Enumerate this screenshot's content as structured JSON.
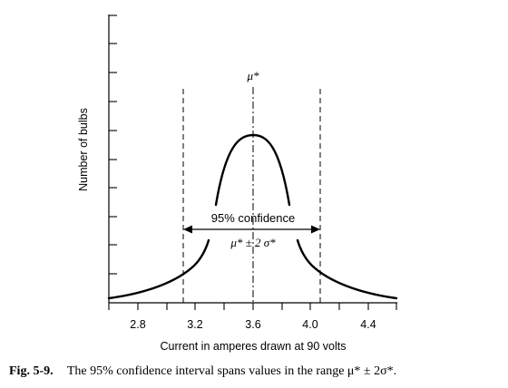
{
  "figure": {
    "peak_label": "μ*",
    "confidence_label": "95% confidence",
    "range_label": "μ* ± 2 σ*",
    "ylabel": "Number of bulbs",
    "xlabel": "Current in amperes drawn at 90 volts",
    "xticks": [
      "2.8",
      "3.2",
      "3.6",
      "4.0",
      "4.4"
    ],
    "caption_prefix": "Fig. 5-9.",
    "caption_text": "The 95% confidence interval spans values in the range μ* ± 2σ*."
  }
}
